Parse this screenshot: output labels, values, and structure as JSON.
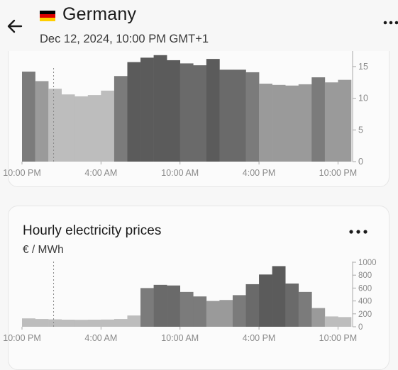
{
  "header": {
    "title": "Germany",
    "datetime": "Dec 12, 2024, 10:00 PM GMT+1",
    "flag_colors": [
      "#000000",
      "#dd0000",
      "#ffce00"
    ]
  },
  "colors": {
    "background": "#f7f7f7",
    "card_background": "#fbfbfb",
    "axis": "#a8a8a8",
    "tick_text": "#8a8a8a",
    "bar_palette": [
      "#bdbdbd",
      "#9a9a9a",
      "#7b7b7b",
      "#6a6a6a",
      "#5b5b5b"
    ]
  },
  "icons": [
    "back-arrow-icon",
    "flag-germany-icon",
    "more-horizontal-icon"
  ],
  "chart_top": {
    "type": "bar",
    "title": "",
    "x_tick_labels": [
      "10:00 PM",
      "4:00 AM",
      "10:00 AM",
      "4:00 PM",
      "10:00 PM"
    ],
    "y_ticks": [
      0,
      5,
      10,
      15
    ],
    "ylim": [
      0,
      17
    ],
    "values": [
      14.2,
      12.7,
      11.5,
      10.6,
      10.3,
      10.5,
      11.2,
      13.5,
      15.7,
      16.4,
      16.8,
      16.0,
      15.5,
      15.2,
      16.2,
      14.5,
      14.5,
      14.1,
      12.3,
      12.1,
      12.0,
      12.2,
      13.3,
      12.5,
      12.9
    ],
    "current_index": 2,
    "grid": false
  },
  "chart_bottom": {
    "type": "bar",
    "title": "Hourly electricity prices",
    "unit": "€ / MWh",
    "x_tick_labels": [
      "10:00 PM",
      "4:00 AM",
      "10:00 AM",
      "4:00 PM",
      "10:00 PM"
    ],
    "y_ticks": [
      0,
      200,
      400,
      600,
      800,
      1000
    ],
    "ylim": [
      0,
      1000
    ],
    "values": [
      130,
      120,
      115,
      110,
      108,
      110,
      112,
      120,
      175,
      600,
      650,
      640,
      540,
      470,
      400,
      415,
      490,
      660,
      810,
      940,
      670,
      540,
      290,
      160,
      150
    ],
    "current_index": 2,
    "grid": false
  }
}
